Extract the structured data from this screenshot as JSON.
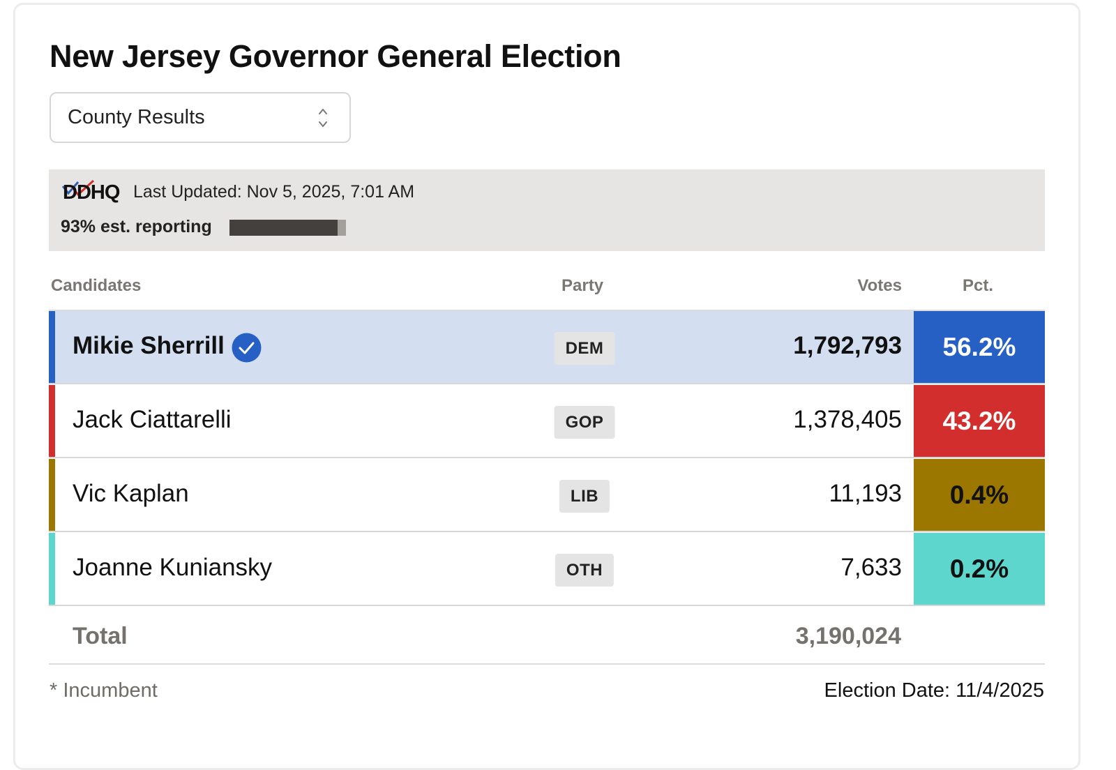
{
  "title": "New Jersey Governor General Election",
  "view_select": {
    "selected": "County Results"
  },
  "info": {
    "source_logo": "DDHQ",
    "last_updated": "Last Updated: Nov 5, 2025, 7:01 AM",
    "reporting_label": "93% est. reporting",
    "reporting_fraction": 0.93
  },
  "table": {
    "headers": {
      "candidates": "Candidates",
      "party": "Party",
      "votes": "Votes",
      "pct": "Pct."
    },
    "rows": [
      {
        "name": "Mikie Sherrill",
        "party": "DEM",
        "votes": "1,792,793",
        "pct": "56.2%",
        "winner": true,
        "color": "#2660c4",
        "pct_text_color": "#ffffff",
        "row_bg": "#d3dff1"
      },
      {
        "name": "Jack Ciattarelli",
        "party": "GOP",
        "votes": "1,378,405",
        "pct": "43.2%",
        "winner": false,
        "color": "#d22e2e",
        "pct_text_color": "#ffffff",
        "row_bg": "#ffffff"
      },
      {
        "name": "Vic Kaplan",
        "party": "LIB",
        "votes": "11,193",
        "pct": "0.4%",
        "winner": false,
        "color": "#9c7700",
        "pct_text_color": "#111111",
        "row_bg": "#ffffff"
      },
      {
        "name": "Joanne Kuniansky",
        "party": "OTH",
        "votes": "7,633",
        "pct": "0.2%",
        "winner": false,
        "color": "#5dd6cd",
        "pct_text_color": "#111111",
        "row_bg": "#ffffff"
      }
    ],
    "total_label": "Total",
    "total_votes": "3,190,024"
  },
  "footer": {
    "incumbent_note": "* Incumbent",
    "election_date": "Election Date: 11/4/2025"
  },
  "icons": {
    "winner": "check-circle-icon",
    "select": "chevron-up-down-icon"
  }
}
